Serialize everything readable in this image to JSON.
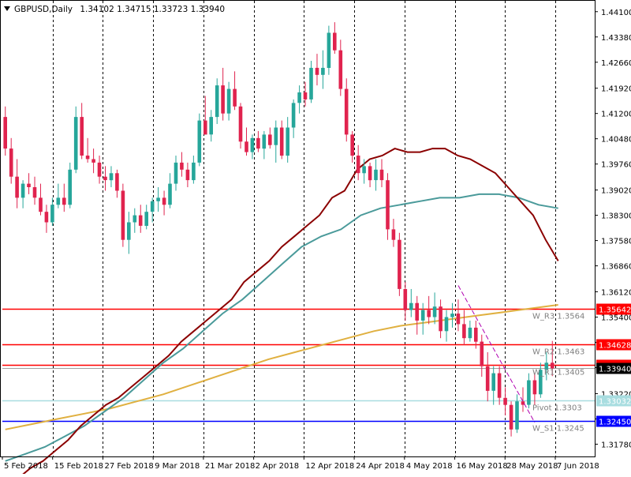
{
  "header": {
    "symbol": "GBPUSD,Daily",
    "ohlc": "1.34102 1.34715 1.33723 1.33940"
  },
  "colors": {
    "bull": "#26a69a",
    "bear": "#e0234e",
    "ma_dark": "#8b0000",
    "ma_teal": "#4a9a9a",
    "ma_gold": "#e0b040",
    "level_red": "#ff0000",
    "level_light": "#a8dde0",
    "level_blue": "#0000ff",
    "trend": "#b000b0"
  },
  "chart_data": {
    "type": "candlestick",
    "symbol": "GBPUSD",
    "timeframe": "Daily",
    "ylim": [
      1.3143,
      1.4441
    ],
    "y_ticks": [
      "1.44100",
      "1.43380",
      "1.42660",
      "1.41920",
      "1.41200",
      "1.40480",
      "1.39760",
      "1.39020",
      "1.38300",
      "1.37580",
      "1.36860",
      "1.36120",
      "1.35400",
      "1.34680",
      "1.33960",
      "1.33220",
      "1.32500",
      "1.31780"
    ],
    "x_labels": [
      "5 Feb 2018",
      "15 Feb 2018",
      "27 Feb 2018",
      "9 Mar 2018",
      "21 Mar 2018",
      "2 Apr 2018",
      "12 Apr 2018",
      "24 Apr 2018",
      "4 May 2018",
      "16 May 2018",
      "28 May 2018",
      "7 Jun 2018"
    ],
    "current_price": "1.33940",
    "levels": [
      {
        "price": 1.35642,
        "tag": "1.35642",
        "label": "W_R3 1.3564",
        "style": "red"
      },
      {
        "price": 1.34628,
        "tag": "1.34628",
        "label": "W_R2 1.3463",
        "style": "red"
      },
      {
        "price": 1.34046,
        "tag": "1.34046",
        "label": "W_R1 1.3405",
        "style": "red"
      },
      {
        "price": 1.33032,
        "tag": "1.33032",
        "label": "Pivot 1.3303",
        "style": "light"
      },
      {
        "price": 1.3245,
        "tag": "1.32450",
        "label": "W_S1 1.3245",
        "style": "blue"
      }
    ],
    "candles": [
      {
        "o": 1.411,
        "h": 1.414,
        "l": 1.4,
        "c": 1.402
      },
      {
        "o": 1.402,
        "h": 1.405,
        "l": 1.392,
        "c": 1.394
      },
      {
        "o": 1.394,
        "h": 1.399,
        "l": 1.385,
        "c": 1.388
      },
      {
        "o": 1.388,
        "h": 1.393,
        "l": 1.385,
        "c": 1.392
      },
      {
        "o": 1.392,
        "h": 1.395,
        "l": 1.389,
        "c": 1.391
      },
      {
        "o": 1.391,
        "h": 1.394,
        "l": 1.386,
        "c": 1.388
      },
      {
        "o": 1.388,
        "h": 1.392,
        "l": 1.383,
        "c": 1.384
      },
      {
        "o": 1.384,
        "h": 1.386,
        "l": 1.378,
        "c": 1.381
      },
      {
        "o": 1.381,
        "h": 1.388,
        "l": 1.38,
        "c": 1.386
      },
      {
        "o": 1.386,
        "h": 1.392,
        "l": 1.385,
        "c": 1.388
      },
      {
        "o": 1.388,
        "h": 1.392,
        "l": 1.384,
        "c": 1.386
      },
      {
        "o": 1.386,
        "h": 1.398,
        "l": 1.385,
        "c": 1.396
      },
      {
        "o": 1.396,
        "h": 1.414,
        "l": 1.395,
        "c": 1.411
      },
      {
        "o": 1.411,
        "h": 1.415,
        "l": 1.399,
        "c": 1.4
      },
      {
        "o": 1.4,
        "h": 1.405,
        "l": 1.398,
        "c": 1.399
      },
      {
        "o": 1.399,
        "h": 1.402,
        "l": 1.395,
        "c": 1.398
      },
      {
        "o": 1.398,
        "h": 1.4,
        "l": 1.392,
        "c": 1.394
      },
      {
        "o": 1.394,
        "h": 1.397,
        "l": 1.39,
        "c": 1.393
      },
      {
        "o": 1.393,
        "h": 1.397,
        "l": 1.391,
        "c": 1.395
      },
      {
        "o": 1.395,
        "h": 1.396,
        "l": 1.388,
        "c": 1.39
      },
      {
        "o": 1.39,
        "h": 1.392,
        "l": 1.374,
        "c": 1.376
      },
      {
        "o": 1.376,
        "h": 1.384,
        "l": 1.372,
        "c": 1.381
      },
      {
        "o": 1.381,
        "h": 1.385,
        "l": 1.378,
        "c": 1.383
      },
      {
        "o": 1.383,
        "h": 1.386,
        "l": 1.378,
        "c": 1.38
      },
      {
        "o": 1.38,
        "h": 1.386,
        "l": 1.379,
        "c": 1.384
      },
      {
        "o": 1.384,
        "h": 1.388,
        "l": 1.381,
        "c": 1.387
      },
      {
        "o": 1.387,
        "h": 1.391,
        "l": 1.384,
        "c": 1.388
      },
      {
        "o": 1.388,
        "h": 1.39,
        "l": 1.383,
        "c": 1.386
      },
      {
        "o": 1.386,
        "h": 1.395,
        "l": 1.385,
        "c": 1.392
      },
      {
        "o": 1.392,
        "h": 1.4,
        "l": 1.39,
        "c": 1.398
      },
      {
        "o": 1.398,
        "h": 1.401,
        "l": 1.394,
        "c": 1.396
      },
      {
        "o": 1.396,
        "h": 1.398,
        "l": 1.391,
        "c": 1.393
      },
      {
        "o": 1.393,
        "h": 1.4,
        "l": 1.392,
        "c": 1.398
      },
      {
        "o": 1.398,
        "h": 1.412,
        "l": 1.397,
        "c": 1.41
      },
      {
        "o": 1.41,
        "h": 1.417,
        "l": 1.406,
        "c": 1.406
      },
      {
        "o": 1.406,
        "h": 1.413,
        "l": 1.404,
        "c": 1.411
      },
      {
        "o": 1.411,
        "h": 1.422,
        "l": 1.409,
        "c": 1.42
      },
      {
        "o": 1.42,
        "h": 1.425,
        "l": 1.41,
        "c": 1.412
      },
      {
        "o": 1.412,
        "h": 1.421,
        "l": 1.41,
        "c": 1.419
      },
      {
        "o": 1.419,
        "h": 1.424,
        "l": 1.413,
        "c": 1.414
      },
      {
        "o": 1.414,
        "h": 1.415,
        "l": 1.402,
        "c": 1.404
      },
      {
        "o": 1.404,
        "h": 1.408,
        "l": 1.4,
        "c": 1.401
      },
      {
        "o": 1.401,
        "h": 1.406,
        "l": 1.399,
        "c": 1.405
      },
      {
        "o": 1.405,
        "h": 1.407,
        "l": 1.401,
        "c": 1.402
      },
      {
        "o": 1.402,
        "h": 1.407,
        "l": 1.399,
        "c": 1.406
      },
      {
        "o": 1.406,
        "h": 1.408,
        "l": 1.402,
        "c": 1.403
      },
      {
        "o": 1.403,
        "h": 1.41,
        "l": 1.398,
        "c": 1.408
      },
      {
        "o": 1.408,
        "h": 1.41,
        "l": 1.399,
        "c": 1.4
      },
      {
        "o": 1.4,
        "h": 1.411,
        "l": 1.398,
        "c": 1.408
      },
      {
        "o": 1.408,
        "h": 1.416,
        "l": 1.405,
        "c": 1.415
      },
      {
        "o": 1.415,
        "h": 1.42,
        "l": 1.412,
        "c": 1.418
      },
      {
        "o": 1.418,
        "h": 1.421,
        "l": 1.414,
        "c": 1.416
      },
      {
        "o": 1.416,
        "h": 1.427,
        "l": 1.415,
        "c": 1.425
      },
      {
        "o": 1.425,
        "h": 1.429,
        "l": 1.42,
        "c": 1.423
      },
      {
        "o": 1.423,
        "h": 1.43,
        "l": 1.419,
        "c": 1.425
      },
      {
        "o": 1.425,
        "h": 1.437,
        "l": 1.423,
        "c": 1.435
      },
      {
        "o": 1.435,
        "h": 1.438,
        "l": 1.429,
        "c": 1.43
      },
      {
        "o": 1.43,
        "h": 1.433,
        "l": 1.417,
        "c": 1.419
      },
      {
        "o": 1.419,
        "h": 1.422,
        "l": 1.404,
        "c": 1.406
      },
      {
        "o": 1.406,
        "h": 1.407,
        "l": 1.398,
        "c": 1.4
      },
      {
        "o": 1.4,
        "h": 1.403,
        "l": 1.393,
        "c": 1.395
      },
      {
        "o": 1.395,
        "h": 1.399,
        "l": 1.392,
        "c": 1.397
      },
      {
        "o": 1.397,
        "h": 1.398,
        "l": 1.391,
        "c": 1.393
      },
      {
        "o": 1.393,
        "h": 1.399,
        "l": 1.39,
        "c": 1.396
      },
      {
        "o": 1.396,
        "h": 1.399,
        "l": 1.391,
        "c": 1.393
      },
      {
        "o": 1.393,
        "h": 1.395,
        "l": 1.376,
        "c": 1.379
      },
      {
        "o": 1.379,
        "h": 1.382,
        "l": 1.374,
        "c": 1.376
      },
      {
        "o": 1.376,
        "h": 1.378,
        "l": 1.36,
        "c": 1.362
      },
      {
        "o": 1.362,
        "h": 1.364,
        "l": 1.353,
        "c": 1.356
      },
      {
        "o": 1.356,
        "h": 1.362,
        "l": 1.354,
        "c": 1.358
      },
      {
        "o": 1.358,
        "h": 1.36,
        "l": 1.349,
        "c": 1.353
      },
      {
        "o": 1.353,
        "h": 1.358,
        "l": 1.349,
        "c": 1.356
      },
      {
        "o": 1.356,
        "h": 1.36,
        "l": 1.352,
        "c": 1.354
      },
      {
        "o": 1.354,
        "h": 1.361,
        "l": 1.352,
        "c": 1.357
      },
      {
        "o": 1.357,
        "h": 1.359,
        "l": 1.348,
        "c": 1.35
      },
      {
        "o": 1.35,
        "h": 1.356,
        "l": 1.347,
        "c": 1.354
      },
      {
        "o": 1.354,
        "h": 1.358,
        "l": 1.351,
        "c": 1.355
      },
      {
        "o": 1.355,
        "h": 1.359,
        "l": 1.35,
        "c": 1.352
      },
      {
        "o": 1.352,
        "h": 1.356,
        "l": 1.346,
        "c": 1.348
      },
      {
        "o": 1.348,
        "h": 1.353,
        "l": 1.347,
        "c": 1.351
      },
      {
        "o": 1.351,
        "h": 1.353,
        "l": 1.345,
        "c": 1.347
      },
      {
        "o": 1.347,
        "h": 1.349,
        "l": 1.337,
        "c": 1.34
      },
      {
        "o": 1.34,
        "h": 1.344,
        "l": 1.33,
        "c": 1.333
      },
      {
        "o": 1.333,
        "h": 1.34,
        "l": 1.329,
        "c": 1.338
      },
      {
        "o": 1.338,
        "h": 1.34,
        "l": 1.329,
        "c": 1.331
      },
      {
        "o": 1.331,
        "h": 1.334,
        "l": 1.326,
        "c": 1.329
      },
      {
        "o": 1.329,
        "h": 1.33,
        "l": 1.32,
        "c": 1.322
      },
      {
        "o": 1.322,
        "h": 1.332,
        "l": 1.321,
        "c": 1.33
      },
      {
        "o": 1.33,
        "h": 1.334,
        "l": 1.327,
        "c": 1.329
      },
      {
        "o": 1.329,
        "h": 1.338,
        "l": 1.328,
        "c": 1.336
      },
      {
        "o": 1.336,
        "h": 1.338,
        "l": 1.329,
        "c": 1.332
      },
      {
        "o": 1.332,
        "h": 1.341,
        "l": 1.331,
        "c": 1.339
      },
      {
        "o": 1.339,
        "h": 1.344,
        "l": 1.336,
        "c": 1.341
      },
      {
        "o": 1.341,
        "h": 1.3472,
        "l": 1.3372,
        "c": 1.3394
      }
    ],
    "ma_slow": [
      1.306,
      1.308,
      1.311,
      1.313,
      1.316,
      1.319,
      1.323,
      1.326,
      1.329,
      1.331,
      1.334,
      1.337,
      1.34,
      1.343,
      1.347,
      1.35,
      1.353,
      1.356,
      1.359,
      1.364,
      1.367,
      1.37,
      1.374,
      1.377,
      1.38,
      1.383,
      1.388,
      1.39,
      1.396,
      1.399,
      1.4,
      1.402,
      1.401,
      1.401,
      1.402,
      1.402,
      1.4,
      1.399,
      1.397,
      1.395,
      1.391,
      1.387,
      1.383,
      1.376,
      1.37
    ],
    "ma_slow_start": 0,
    "ma_slow_end": 97,
    "ma_mid": [
      1.313,
      1.315,
      1.317,
      1.32,
      1.323,
      1.327,
      1.331,
      1.336,
      1.341,
      1.345,
      1.35,
      1.355,
      1.359,
      1.364,
      1.369,
      1.374,
      1.377,
      1.379,
      1.383,
      1.385,
      1.386,
      1.387,
      1.388,
      1.388,
      1.389,
      1.389,
      1.388,
      1.386,
      1.385
    ],
    "ma_mid_start": 0,
    "ma_mid_end": 97,
    "ma_gold": [
      1.322,
      1.3235,
      1.325,
      1.3265,
      1.328,
      1.33,
      1.332,
      1.3345,
      1.337,
      1.3395,
      1.342,
      1.344,
      1.346,
      1.348,
      1.35,
      1.3515,
      1.3525,
      1.3535,
      1.3545,
      1.3555,
      1.3565,
      1.3575
    ],
    "ma_gold_start": 0,
    "ma_gold_end": 97,
    "trendline": {
      "from": [
        77,
        1.363
      ],
      "to": [
        90,
        1.324
      ]
    }
  }
}
